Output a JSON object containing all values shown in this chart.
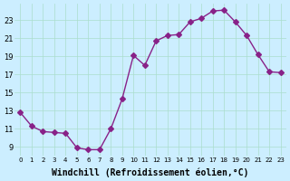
{
  "x": [
    0,
    1,
    2,
    3,
    4,
    5,
    6,
    7,
    8,
    9,
    10,
    11,
    12,
    13,
    14,
    15,
    16,
    17,
    18,
    19,
    20,
    21,
    22,
    23
  ],
  "y": [
    12.8,
    11.3,
    10.7,
    10.6,
    10.5,
    8.9,
    8.7,
    8.7,
    11.0,
    14.3,
    19.1,
    18.0,
    20.7,
    21.3,
    21.4,
    22.8,
    23.2,
    24.0,
    24.1,
    22.8,
    21.3,
    19.2,
    17.3,
    17.2
  ],
  "line_color": "#882288",
  "marker": "D",
  "marker_size": 3,
  "bg_color": "#cceeff",
  "grid_color": "#aaddcc",
  "xlabel": "Windchill (Refroidissement éolien,°C)",
  "xlabel_fontsize": 7,
  "ytick_labels": [
    "9",
    "11",
    "13",
    "15",
    "17",
    "19",
    "21",
    "23"
  ],
  "ytick_values": [
    9,
    11,
    13,
    15,
    17,
    19,
    21,
    23
  ],
  "xtick_labels": [
    "0",
    "1",
    "2",
    "3",
    "4",
    "5",
    "6",
    "7",
    "8",
    "9",
    "10",
    "11",
    "12",
    "13",
    "14",
    "15",
    "16",
    "17",
    "18",
    "19",
    "20",
    "21",
    "22",
    "23"
  ],
  "xlim": [
    -0.5,
    23.5
  ],
  "ylim": [
    8.0,
    24.8
  ],
  "linewidth": 1.0
}
